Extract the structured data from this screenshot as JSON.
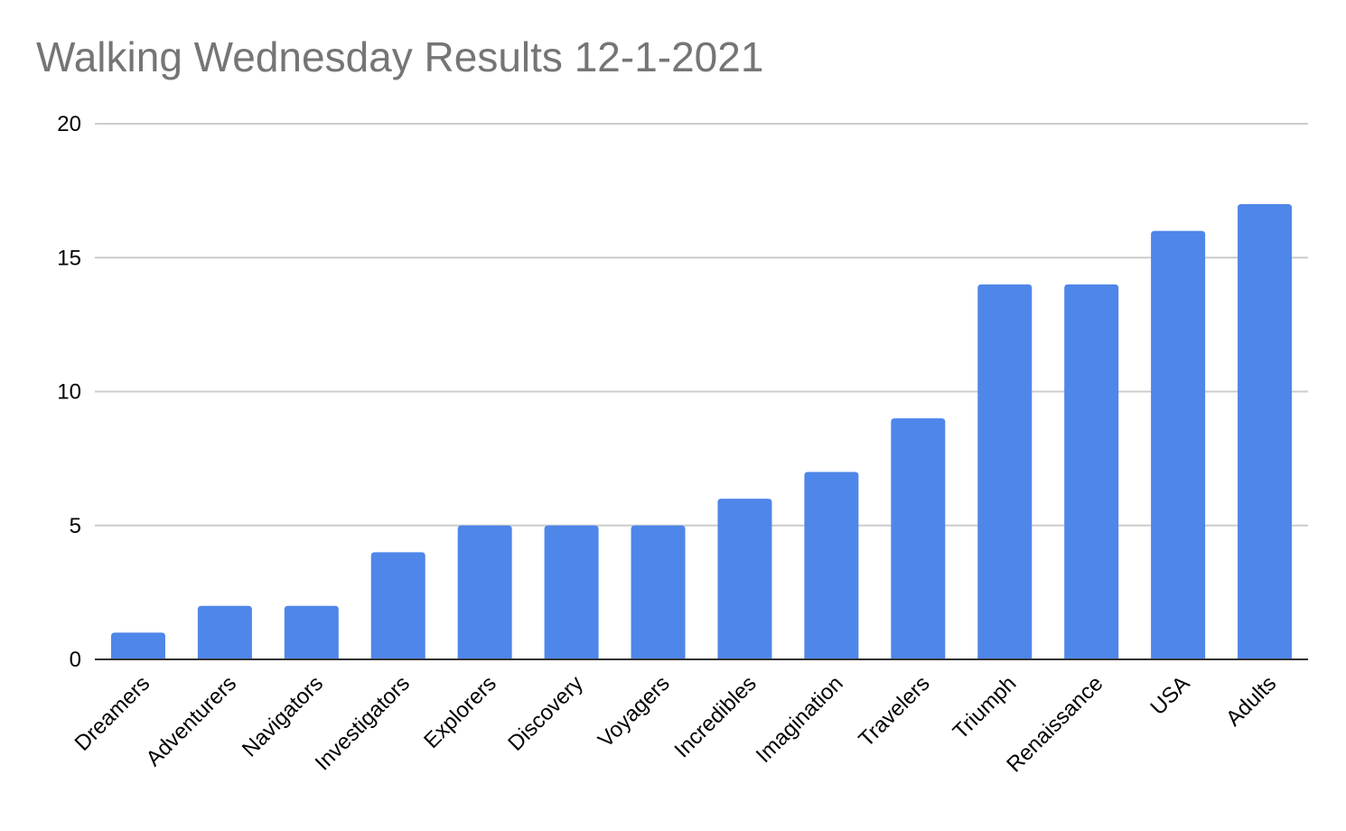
{
  "chart_data": {
    "type": "bar",
    "title": "Walking Wednesday Results 12-1-2021",
    "xlabel": "",
    "ylabel": "",
    "categories": [
      "Dreamers",
      "Adventurers",
      "Navigators",
      "Investigators",
      "Explorers",
      "Discovery",
      "Voyagers",
      "Incredibles",
      "Imagination",
      "Travelers",
      "Triumph",
      "Renaissance",
      "USA",
      "Adults"
    ],
    "values": [
      1,
      2,
      2,
      4,
      5,
      5,
      5,
      6,
      7,
      9,
      14,
      14,
      16,
      17
    ],
    "ylim": [
      0,
      20
    ],
    "yticks": [
      "0",
      "5",
      "10",
      "15",
      "20"
    ],
    "grid": true,
    "legend": "none",
    "colors": {
      "bar": "#4f86e9",
      "grid": "#cccccc",
      "axis": "#333333"
    }
  }
}
